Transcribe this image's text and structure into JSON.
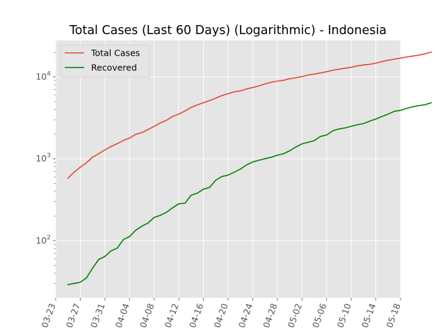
{
  "chart_data": {
    "type": "line",
    "title": "Total Cases (Last 60 Days) (Logarithmic) - Indonesia",
    "xlabel": "",
    "ylabel": "",
    "yscale": "log",
    "ylim": [
      20,
      28000
    ],
    "xlim": [
      "2020-03-23",
      "2020-05-18"
    ],
    "x_start_date": "2020-03-25",
    "x_tick_labels": [
      "03-23",
      "03-27",
      "03-31",
      "04-04",
      "04-08",
      "04-12",
      "04-16",
      "04-20",
      "04-24",
      "04-28",
      "05-02",
      "05-06",
      "05-10",
      "05-14",
      "05-18"
    ],
    "y_tick_labels": [
      {
        "base": "10",
        "exp": "2",
        "value": 100
      },
      {
        "base": "10",
        "exp": "3",
        "value": 1000
      },
      {
        "base": "10",
        "exp": "4",
        "value": 10000
      }
    ],
    "grid": true,
    "legend_position": "top-left",
    "colors": {
      "background": "#e5e5e5",
      "grid": "#ffffff",
      "axis_text": "#555555",
      "title": "#000000"
    },
    "series": [
      {
        "name": "Total Cases",
        "color": "#e24a33",
        "values": [
          579,
          686,
          790,
          893,
          1046,
          1155,
          1285,
          1414,
          1528,
          1677,
          1790,
          1986,
          2092,
          2273,
          2491,
          2738,
          2956,
          3293,
          3512,
          3842,
          4241,
          4557,
          4839,
          5136,
          5516,
          5923,
          6248,
          6575,
          6760,
          7135,
          7418,
          7775,
          8211,
          8607,
          8882,
          9096,
          9511,
          9771,
          10118,
          10551,
          10843,
          11192,
          11587,
          12071,
          12438,
          12776,
          13112,
          13645,
          14032,
          14265,
          14749,
          15438,
          16006,
          16496,
          17025,
          17514,
          18010,
          18496,
          19189,
          20162
        ]
      },
      {
        "name": "Recovered",
        "color": "#008000",
        "values": [
          29,
          30,
          31,
          35,
          46,
          59,
          64,
          75,
          81,
          103,
          112,
          134,
          150,
          164,
          192,
          204,
          222,
          252,
          282,
          286,
          359,
          380,
          426,
          446,
          548,
          607,
          631,
          686,
          747,
          842,
          913,
          960,
          1002,
          1042,
          1107,
          1151,
          1254,
          1391,
          1522,
          1591,
          1665,
          1876,
          1954,
          2197,
          2317,
          2381,
          2494,
          2607,
          2698,
          2881,
          3063,
          3287,
          3518,
          3803,
          3905,
          4129,
          4324,
          4467,
          4575,
          4838
        ]
      }
    ]
  }
}
